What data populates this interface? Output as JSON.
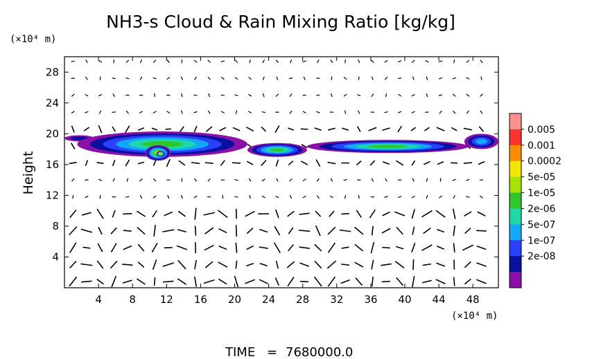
{
  "chart_data": {
    "type": "heatmap",
    "title": "NH3-s Cloud & Rain Mixing Ratio [kg/kg]",
    "ylabel": "Height",
    "y_unit": "(×10⁴ m)",
    "x_unit": "(×10⁴ m)",
    "xlim": [
      0,
      51
    ],
    "ylim": [
      0,
      30
    ],
    "x_ticks": [
      4,
      8,
      12,
      16,
      20,
      24,
      28,
      32,
      36,
      40,
      44,
      48
    ],
    "y_ticks": [
      4,
      8,
      12,
      16,
      20,
      24,
      28
    ],
    "colorbar": {
      "levels": [
        "0.005",
        "0.001",
        "0.0002",
        "5e-05",
        "1e-05",
        "2e-06",
        "5e-07",
        "1e-07",
        "2e-08"
      ],
      "colors": [
        "#ff9090",
        "#ff3030",
        "#ff8c00",
        "#f2e600",
        "#a8e000",
        "#2ec82e",
        "#1ed8a8",
        "#12a8ff",
        "#2a40ff",
        "#0a0fa0",
        "#8a10a8"
      ]
    },
    "cloud_bands": [
      {
        "x": [
          0.0,
          3.5
        ],
        "y": [
          19.0,
          19.8
        ],
        "level": "2e-08"
      },
      {
        "x": [
          1.5,
          21.5
        ],
        "y": [
          17.0,
          20.3
        ],
        "level": "1e-05"
      },
      {
        "x": [
          9.5,
          12.5
        ],
        "y": [
          16.5,
          18.5
        ],
        "level": "0.0002"
      },
      {
        "x": [
          10.8,
          11.8
        ],
        "y": [
          17.0,
          17.8
        ],
        "level": "0.001"
      },
      {
        "x": [
          21.5,
          28.5
        ],
        "y": [
          17.0,
          18.8
        ],
        "level": "1e-05"
      },
      {
        "x": [
          28.5,
          47.5
        ],
        "y": [
          17.5,
          19.2
        ],
        "level": "1e-05"
      },
      {
        "x": [
          47.0,
          51.0
        ],
        "y": [
          18.0,
          20.0
        ],
        "level": "5e-07"
      }
    ]
  },
  "footer": {
    "time_label": "TIME",
    "time_equals": "=",
    "time_value": "7680000.0"
  }
}
